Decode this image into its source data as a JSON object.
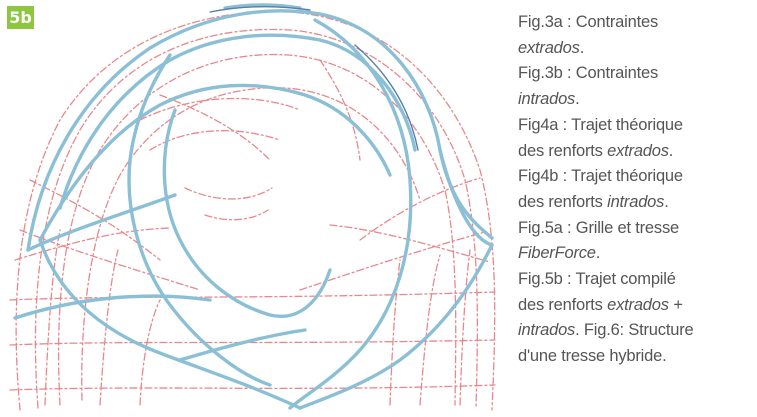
{
  "figure": {
    "label": "5b",
    "label_color": "#8dc63f",
    "red_line_color": "#e8888e",
    "blue_line_color": "#8bbfd6"
  },
  "caption": {
    "lines": [
      [
        {
          "t": "Fig.3a : Contraintes",
          "i": false
        }
      ],
      [
        {
          "t": "extrados",
          "i": true
        },
        {
          "t": ".",
          "i": false
        }
      ],
      [
        {
          "t": "Fig.3b : Contraintes",
          "i": false
        }
      ],
      [
        {
          "t": "intrados",
          "i": true
        },
        {
          "t": ".",
          "i": false
        }
      ],
      [
        {
          "t": "Fig4a : Trajet théorique",
          "i": false
        }
      ],
      [
        {
          "t": "des renforts ",
          "i": false
        },
        {
          "t": "extrados",
          "i": true
        },
        {
          "t": ".",
          "i": false
        }
      ],
      [
        {
          "t": "Fig4b : Trajet théorique",
          "i": false
        }
      ],
      [
        {
          "t": "des renforts ",
          "i": false
        },
        {
          "t": "intrados",
          "i": true
        },
        {
          "t": ".",
          "i": false
        }
      ],
      [
        {
          "t": "Fig.5a : Grille et tresse",
          "i": false
        }
      ],
      [
        {
          "t": "FiberForce",
          "i": true
        },
        {
          "t": ".",
          "i": false
        }
      ],
      [
        {
          "t": "Fig.5b : Trajet compilé",
          "i": false
        }
      ],
      [
        {
          "t": "des renforts ",
          "i": false
        },
        {
          "t": "extrados +",
          "i": true
        }
      ],
      [
        {
          "t": "intrados",
          "i": true
        },
        {
          "t": ". Fig.6: Structure",
          "i": false
        }
      ],
      [
        {
          "t": "d'une tresse hybride.",
          "i": false
        }
      ]
    ]
  }
}
